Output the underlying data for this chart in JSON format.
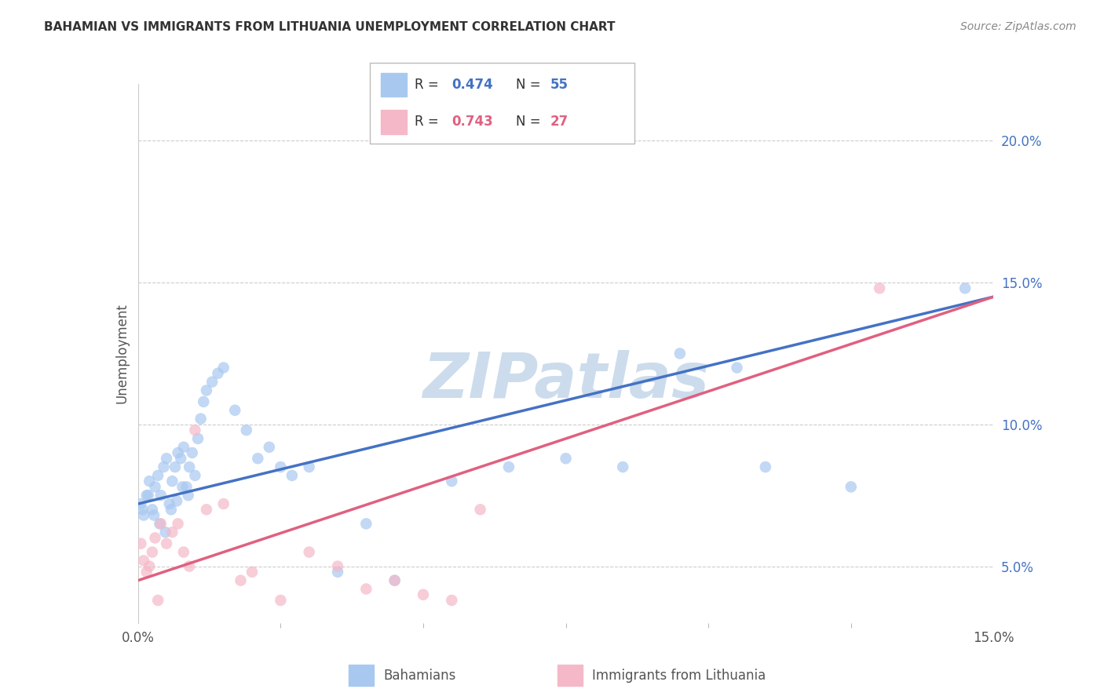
{
  "title": "BAHAMIAN VS IMMIGRANTS FROM LITHUANIA UNEMPLOYMENT CORRELATION CHART",
  "source": "Source: ZipAtlas.com",
  "ylabel": "Unemployment",
  "xlim": [
    0.0,
    15.0
  ],
  "ylim": [
    3.0,
    22.0
  ],
  "series1_label": "Bahamians",
  "series1_color": "#a8c8f0",
  "series1_line_color": "#4472c4",
  "series1_R": "0.474",
  "series1_N": "55",
  "series2_label": "Immigrants from Lithuania",
  "series2_color": "#f4b8c8",
  "series2_line_color": "#e06080",
  "series2_R": "0.743",
  "series2_N": "27",
  "watermark": "ZIPatlas",
  "watermark_color": "#ccdcec",
  "ytick_color": "#4472c4",
  "series1_x": [
    0.05,
    0.1,
    0.15,
    0.2,
    0.25,
    0.3,
    0.35,
    0.4,
    0.45,
    0.5,
    0.55,
    0.6,
    0.65,
    0.7,
    0.75,
    0.8,
    0.85,
    0.9,
    0.95,
    1.0,
    1.05,
    1.1,
    1.15,
    1.2,
    1.3,
    1.4,
    1.5,
    1.7,
    1.9,
    2.1,
    2.3,
    2.5,
    2.7,
    3.0,
    3.5,
    4.0,
    4.5,
    5.5,
    6.5,
    7.5,
    8.5,
    9.5,
    10.5,
    11.0,
    12.5,
    14.5,
    0.08,
    0.18,
    0.28,
    0.38,
    0.48,
    0.58,
    0.68,
    0.78,
    0.88
  ],
  "series1_y": [
    7.2,
    6.8,
    7.5,
    8.0,
    7.0,
    7.8,
    8.2,
    7.5,
    8.5,
    8.8,
    7.2,
    8.0,
    8.5,
    9.0,
    8.8,
    9.2,
    7.8,
    8.5,
    9.0,
    8.2,
    9.5,
    10.2,
    10.8,
    11.2,
    11.5,
    11.8,
    12.0,
    10.5,
    9.8,
    8.8,
    9.2,
    8.5,
    8.2,
    8.5,
    4.8,
    6.5,
    4.5,
    8.0,
    8.5,
    8.8,
    8.5,
    12.5,
    12.0,
    8.5,
    7.8,
    14.8,
    7.0,
    7.5,
    6.8,
    6.5,
    6.2,
    7.0,
    7.3,
    7.8,
    7.5
  ],
  "series2_x": [
    0.05,
    0.1,
    0.15,
    0.2,
    0.25,
    0.3,
    0.4,
    0.5,
    0.6,
    0.7,
    0.8,
    0.9,
    1.0,
    1.2,
    1.5,
    1.8,
    2.0,
    2.5,
    3.0,
    3.5,
    4.0,
    4.5,
    5.0,
    5.5,
    6.0,
    13.0,
    0.35
  ],
  "series2_y": [
    5.8,
    5.2,
    4.8,
    5.0,
    5.5,
    6.0,
    6.5,
    5.8,
    6.2,
    6.5,
    5.5,
    5.0,
    9.8,
    7.0,
    7.2,
    4.5,
    4.8,
    3.8,
    5.5,
    5.0,
    4.2,
    4.5,
    4.0,
    3.8,
    7.0,
    14.8,
    3.8
  ],
  "reg1_x0": 0.0,
  "reg1_y0": 7.2,
  "reg1_x1": 15.0,
  "reg1_y1": 14.5,
  "reg2_x0": 0.0,
  "reg2_y0": 4.5,
  "reg2_x1": 15.0,
  "reg2_y1": 14.5
}
